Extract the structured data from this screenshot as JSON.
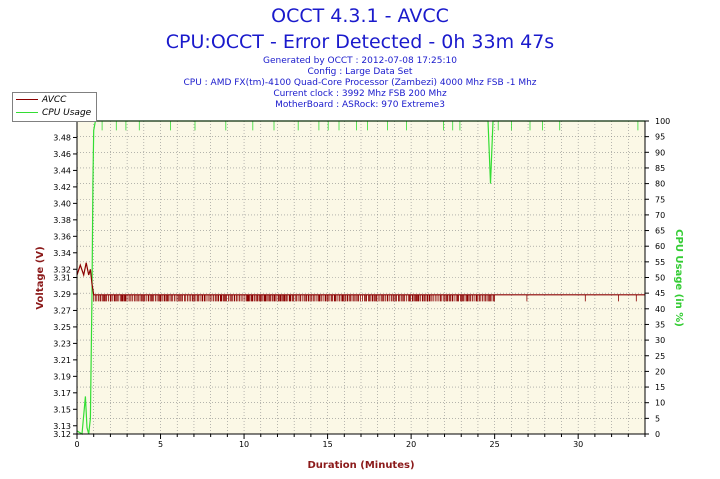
{
  "header": {
    "title": "OCCT 4.3.1 - AVCC",
    "subtitle": "CPU:OCCT - Error Detected - 0h 33m 47s",
    "info_lines": [
      "Generated by OCCT : 2012-07-08 17:25:10",
      "Config : Large Data Set",
      "CPU : AMD FX(tm)-4100 Quad-Core Processor (Zambezi) 4000 Mhz FSB -1 Mhz",
      "Current clock : 3992 Mhz FSB 200 Mhz",
      "MotherBoard : ASRock: 970 Extreme3"
    ]
  },
  "colors": {
    "avcc": "#8b0000",
    "cpu": "#33dd33",
    "plot_bg": "#fbf8e6",
    "grid": "#8a8a8a",
    "title": "#1a1acc",
    "axis_label_left": "#8b1a1a",
    "axis_label_right": "#33cc33"
  },
  "chart_data": {
    "type": "line",
    "title": "OCCT 4.3.1 - AVCC",
    "xlabel": "Duration (Minutes)",
    "ylabel": "Voltage (V)",
    "y2label": "CPU Usage (in %)",
    "xlim": [
      0,
      34
    ],
    "ylim": [
      3.12,
      3.5
    ],
    "y2lim": [
      0,
      100
    ],
    "x_ticks": [
      0,
      5,
      10,
      15,
      20,
      25,
      30
    ],
    "y_ticks": [
      3.12,
      3.13,
      3.15,
      3.17,
      3.19,
      3.21,
      3.23,
      3.25,
      3.27,
      3.29,
      3.31,
      3.32,
      3.34,
      3.36,
      3.38,
      3.4,
      3.42,
      3.44,
      3.46,
      3.48
    ],
    "y2_ticks": [
      0,
      5,
      10,
      15,
      20,
      25,
      30,
      35,
      40,
      45,
      50,
      55,
      60,
      65,
      70,
      75,
      80,
      85,
      90,
      95,
      100
    ],
    "grid": true,
    "legend_position": "top-left",
    "series": [
      {
        "name": "AVCC",
        "axis": "left",
        "x": [
          0,
          0.2,
          0.4,
          0.55,
          0.7,
          0.8,
          0.9,
          1.0,
          1.2,
          2,
          5,
          10,
          15,
          20,
          25,
          30,
          34
        ],
        "values": [
          3.313,
          3.325,
          3.313,
          3.328,
          3.313,
          3.32,
          3.302,
          3.289,
          3.289,
          3.289,
          3.289,
          3.289,
          3.289,
          3.289,
          3.289,
          3.289,
          3.289
        ],
        "fluctuation_low": 3.281,
        "fluctuation_range_x": [
          1.0,
          25.0
        ]
      },
      {
        "name": "CPU Usage",
        "axis": "right",
        "x": [
          0,
          0.3,
          0.5,
          0.6,
          0.7,
          0.8,
          0.9,
          0.95,
          1.0,
          1.1,
          1.3,
          5,
          10,
          15,
          20,
          24.6,
          24.75,
          24.9,
          25.5,
          30,
          34
        ],
        "values": [
          1,
          0,
          12,
          2,
          0,
          5,
          45,
          80,
          97,
          100,
          100,
          100,
          100,
          100,
          100,
          100,
          80,
          100,
          100,
          100,
          100
        ],
        "dip_low": 97
      }
    ]
  }
}
